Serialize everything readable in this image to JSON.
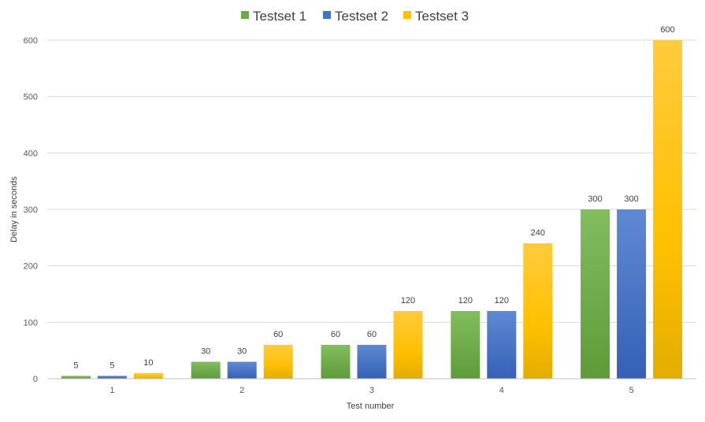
{
  "chart_data": {
    "type": "bar",
    "categories": [
      "1",
      "2",
      "3",
      "4",
      "5"
    ],
    "series": [
      {
        "name": "Testset 1",
        "values": [
          5,
          30,
          60,
          120,
          300
        ]
      },
      {
        "name": "Testset 2",
        "values": [
          5,
          30,
          60,
          120,
          300
        ]
      },
      {
        "name": "Testset 3",
        "values": [
          10,
          60,
          120,
          240,
          600
        ]
      }
    ],
    "xlabel": "Test number",
    "ylabel": "Delay in seconds",
    "ylim": [
      0,
      600
    ],
    "yticks": [
      "0",
      "100",
      "200",
      "300",
      "400",
      "500",
      "600"
    ],
    "grid": true,
    "legend_position": "top-center",
    "colors": [
      "#6aaa44",
      "#4472c4",
      "#ffc000"
    ]
  }
}
